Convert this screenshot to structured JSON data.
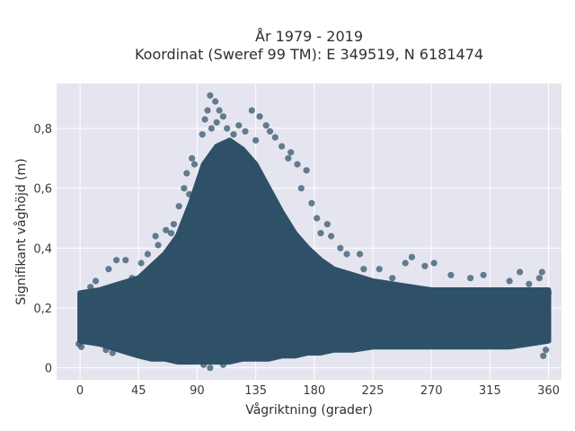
{
  "chart_data": {
    "type": "scatter",
    "title_lines": [
      "År 1979 - 2019",
      "Koordinat (Sweref 99 TM): E 349519, N 6181474"
    ],
    "xlabel": "Vågriktning (grader)",
    "ylabel": "Signifikant våghöjd (m)",
    "xlim": [
      -18,
      370
    ],
    "ylim": [
      -0.04,
      0.95
    ],
    "xticks": [
      0,
      45,
      90,
      135,
      180,
      225,
      270,
      315,
      360
    ],
    "xtick_labels": [
      "0",
      "45",
      "90",
      "135",
      "180",
      "225",
      "270",
      "315",
      "360"
    ],
    "yticks": [
      0,
      0.2,
      0.4,
      0.6,
      0.8
    ],
    "ytick_labels": [
      "0",
      "0,2",
      "0,4",
      "0,6",
      "0,8"
    ],
    "grid": true,
    "colors": {
      "point": "#2e5168",
      "plot_bg": "#e5e5ef",
      "grid": "#ffffff"
    },
    "envelope": {
      "x": [
        0,
        15,
        30,
        45,
        55,
        65,
        75,
        85,
        95,
        105,
        115,
        125,
        135,
        145,
        155,
        165,
        175,
        185,
        195,
        210,
        225,
        240,
        255,
        270,
        285,
        300,
        315,
        330,
        345,
        360
      ],
      "y_low": [
        0.09,
        0.08,
        0.06,
        0.04,
        0.03,
        0.03,
        0.02,
        0.02,
        0.02,
        0.02,
        0.02,
        0.03,
        0.03,
        0.03,
        0.04,
        0.04,
        0.05,
        0.05,
        0.06,
        0.06,
        0.07,
        0.07,
        0.07,
        0.07,
        0.07,
        0.07,
        0.07,
        0.07,
        0.08,
        0.09
      ],
      "y_high": [
        0.25,
        0.26,
        0.28,
        0.3,
        0.34,
        0.38,
        0.44,
        0.55,
        0.68,
        0.74,
        0.76,
        0.73,
        0.68,
        0.6,
        0.52,
        0.45,
        0.4,
        0.36,
        0.33,
        0.31,
        0.29,
        0.28,
        0.27,
        0.26,
        0.26,
        0.26,
        0.26,
        0.26,
        0.26,
        0.26
      ]
    },
    "points": [
      [
        100,
        0.91
      ],
      [
        104,
        0.89
      ],
      [
        107,
        0.86
      ],
      [
        98,
        0.86
      ],
      [
        110,
        0.84
      ],
      [
        96,
        0.83
      ],
      [
        105,
        0.82
      ],
      [
        113,
        0.8
      ],
      [
        101,
        0.8
      ],
      [
        118,
        0.78
      ],
      [
        94,
        0.78
      ],
      [
        132,
        0.86
      ],
      [
        138,
        0.84
      ],
      [
        143,
        0.81
      ],
      [
        146,
        0.79
      ],
      [
        150,
        0.77
      ],
      [
        162,
        0.72
      ],
      [
        160,
        0.7
      ],
      [
        167,
        0.68
      ],
      [
        174,
        0.66
      ],
      [
        86,
        0.7
      ],
      [
        88,
        0.68
      ],
      [
        82,
        0.65
      ],
      [
        80,
        0.6
      ],
      [
        84,
        0.58
      ],
      [
        76,
        0.54
      ],
      [
        170,
        0.6
      ],
      [
        178,
        0.55
      ],
      [
        190,
        0.48
      ],
      [
        193,
        0.44
      ],
      [
        182,
        0.5
      ],
      [
        200,
        0.4
      ],
      [
        205,
        0.38
      ],
      [
        215,
        0.38
      ],
      [
        218,
        0.33
      ],
      [
        250,
        0.35
      ],
      [
        255,
        0.37
      ],
      [
        265,
        0.34
      ],
      [
        272,
        0.35
      ],
      [
        300,
        0.3
      ],
      [
        310,
        0.31
      ],
      [
        338,
        0.32
      ],
      [
        355,
        0.32
      ],
      [
        353,
        0.3
      ],
      [
        72,
        0.48
      ],
      [
        70,
        0.45
      ],
      [
        66,
        0.46
      ],
      [
        60,
        0.41
      ],
      [
        58,
        0.44
      ],
      [
        35,
        0.36
      ],
      [
        28,
        0.36
      ],
      [
        22,
        0.33
      ],
      [
        40,
        0.3
      ],
      [
        47,
        0.35
      ],
      [
        52,
        0.38
      ],
      [
        122,
        0.81
      ],
      [
        127,
        0.79
      ],
      [
        135,
        0.76
      ],
      [
        155,
        0.74
      ],
      [
        185,
        0.45
      ],
      [
        230,
        0.33
      ],
      [
        240,
        0.3
      ],
      [
        285,
        0.31
      ],
      [
        330,
        0.29
      ],
      [
        345,
        0.28
      ],
      [
        360,
        0.25
      ],
      [
        358,
        0.06
      ],
      [
        356,
        0.04
      ],
      [
        -1,
        0.08
      ],
      [
        1,
        0.07
      ],
      [
        2,
        0.09
      ],
      [
        20,
        0.06
      ],
      [
        25,
        0.05
      ],
      [
        100,
        0.0
      ],
      [
        95,
        0.01
      ],
      [
        110,
        0.01
      ],
      [
        12,
        0.29
      ],
      [
        8,
        0.27
      ],
      [
        42,
        0.23
      ]
    ]
  }
}
